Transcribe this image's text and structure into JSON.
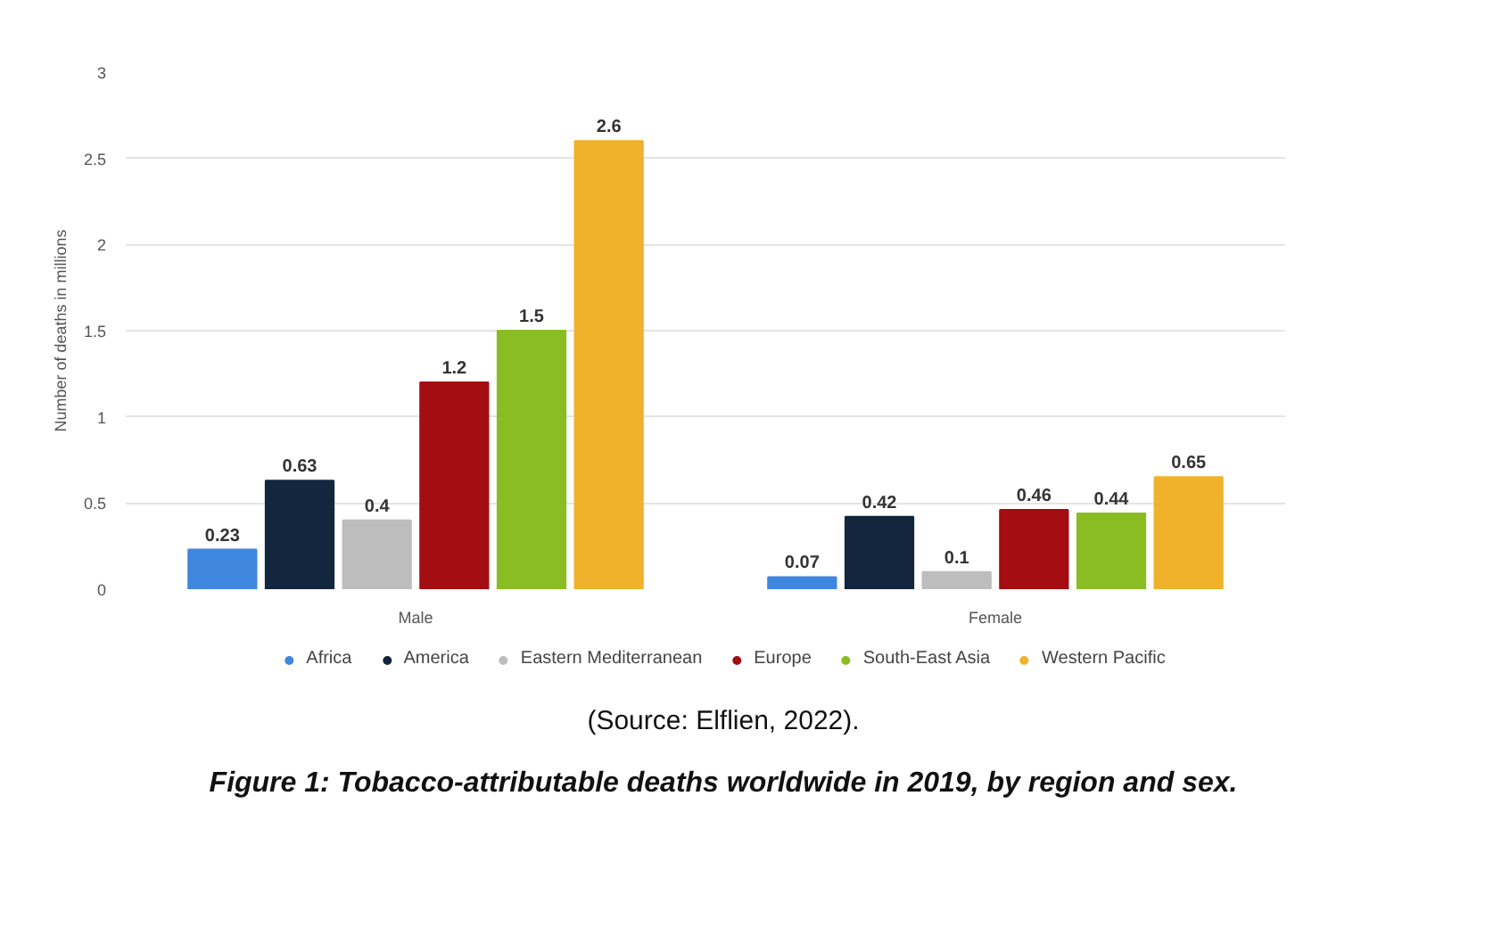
{
  "chart_data": {
    "type": "bar",
    "categories": [
      "Male",
      "Female"
    ],
    "ylabel": "Number of deaths in millions",
    "ylim": [
      0,
      3
    ],
    "yticks": [
      0,
      0.5,
      1,
      1.5,
      2,
      2.5,
      3
    ],
    "grid": "y",
    "legend": "bottom",
    "data_labels": true,
    "series": [
      {
        "name": "Africa",
        "color": "#3f86de",
        "values": [
          0.23,
          0.07
        ]
      },
      {
        "name": "America",
        "color": "#12263d",
        "values": [
          0.63,
          0.42
        ]
      },
      {
        "name": "Eastern Mediterranean",
        "color": "#bdbdbd",
        "values": [
          0.4,
          0.1
        ]
      },
      {
        "name": "Europe",
        "color": "#a40d12",
        "values": [
          1.2,
          0.46
        ]
      },
      {
        "name": "South-East Asia",
        "color": "#8abd24",
        "values": [
          1.5,
          0.44
        ]
      },
      {
        "name": "Western Pacific",
        "color": "#efb22a",
        "values": [
          2.6,
          0.65
        ]
      }
    ],
    "annotations": [
      "(Source: Elflien, 2022).",
      "Figure 1: Tobacco-attributable deaths worldwide in 2019, by region and sex."
    ]
  }
}
